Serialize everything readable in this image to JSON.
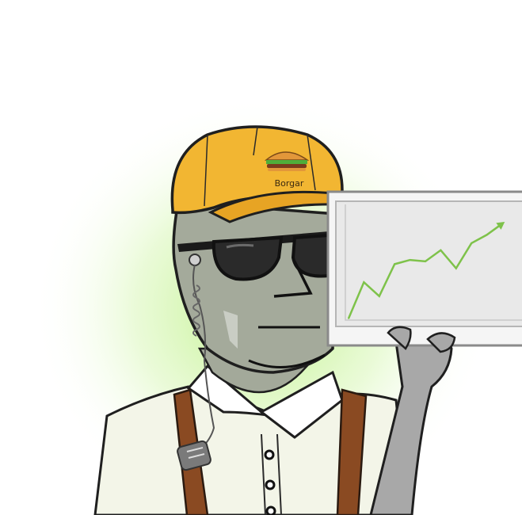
{
  "cap": {
    "label": "Borgar"
  },
  "colors": {
    "background": "#ffffff",
    "glow": "#c9f29a",
    "skin": "#a3a99a",
    "cap": "#f2b632",
    "shirt": "#f2f4e6",
    "suspenders": "#8a4a22",
    "chart_line": "#7ec24a",
    "chart_panel": "#ececec",
    "arm": "#a7a7a7"
  },
  "icons": [
    "burger-icon",
    "trend-arrow-icon",
    "earpiece-icon",
    "radio-icon",
    "sunglasses-icon"
  ],
  "chart_data": {
    "type": "line",
    "title": "",
    "xlabel": "",
    "ylabel": "",
    "grid": false,
    "x": [
      0,
      1,
      2,
      3,
      4,
      5,
      6,
      7,
      8,
      9,
      10
    ],
    "values": [
      0,
      2.6,
      1.6,
      3.9,
      4.2,
      4.1,
      4.9,
      3.6,
      5.4,
      6.0,
      6.8
    ],
    "ylim": [
      0,
      7.5
    ]
  }
}
